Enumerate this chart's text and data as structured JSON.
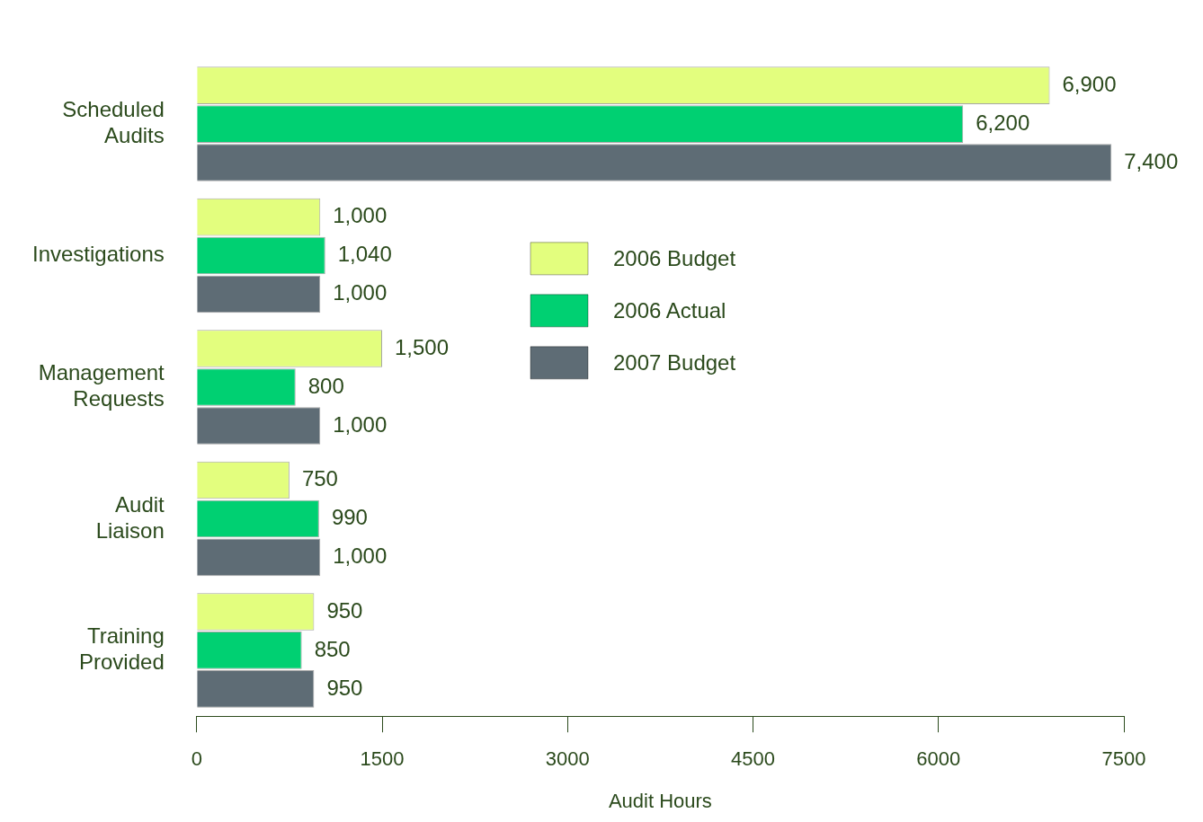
{
  "chart_data": {
    "type": "bar",
    "orientation": "horizontal",
    "categories": [
      "Scheduled Audits",
      "Investigations",
      "Management Requests",
      "Audit Liaison",
      "Training Provided"
    ],
    "series": [
      {
        "name": "2006 Budget",
        "color": "#e3fe7e",
        "values": [
          6900,
          1000,
          1500,
          750,
          950
        ],
        "value_labels": [
          "6,900",
          "1,000",
          "1,500",
          "750",
          "950"
        ]
      },
      {
        "name": "2006 Actual",
        "color": "#00d072",
        "values": [
          6200,
          1040,
          800,
          990,
          850
        ],
        "value_labels": [
          "6,200",
          "1,040",
          "800",
          "990",
          "850"
        ]
      },
      {
        "name": "2007 Budget",
        "color": "#5e6c75",
        "values": [
          7400,
          1000,
          1000,
          1000,
          950
        ],
        "value_labels": [
          "7,400",
          "1,000",
          "1,000",
          "1,000",
          "950"
        ]
      }
    ],
    "xlabel": "Audit Hours",
    "xlim": [
      0,
      7500
    ],
    "xticks": [
      0,
      1500,
      3000,
      4500,
      6000,
      7500
    ],
    "grid": false,
    "legend": "top"
  }
}
